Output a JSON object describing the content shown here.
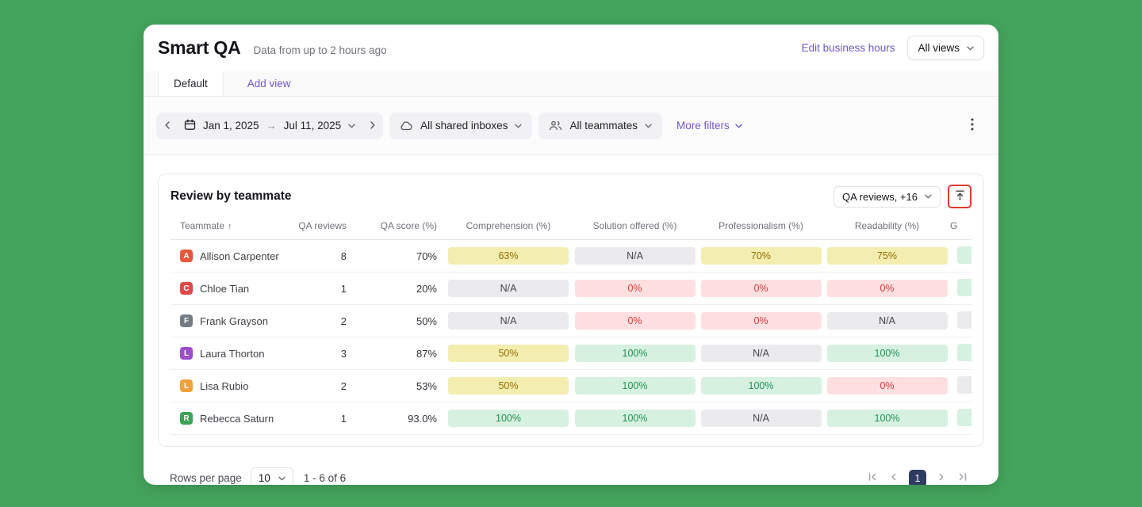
{
  "header": {
    "title": "Smart QA",
    "subtitle": "Data from up to 2 hours ago",
    "edit_business_hours": "Edit business hours",
    "views_label": "All views"
  },
  "tabs": {
    "default": "Default",
    "add_view": "Add view"
  },
  "filters": {
    "date_start": "Jan 1, 2025",
    "date_separator": "→",
    "date_end": "Jul 11, 2025",
    "inboxes_label": "All shared inboxes",
    "teammates_label": "All teammates",
    "more_filters_label": "More filters"
  },
  "report": {
    "title": "Review by teammate",
    "metric_dropdown_label": "QA reviews, +16"
  },
  "table": {
    "columns": [
      {
        "label": "Teammate",
        "align": "left",
        "sorted": true
      },
      {
        "label": "QA reviews",
        "align": "right"
      },
      {
        "label": "QA score (%)",
        "align": "right"
      },
      {
        "label": "Comprehension (%)",
        "align": "center"
      },
      {
        "label": "Solution offered (%)",
        "align": "center"
      },
      {
        "label": "Professionalism (%)",
        "align": "center"
      },
      {
        "label": "Readability (%)",
        "align": "center"
      },
      {
        "label": "G",
        "align": "left"
      }
    ],
    "rows": [
      {
        "initial": "A",
        "avatar_color": "#e8563c",
        "name": "Allison Carpenter",
        "qa_reviews": "8",
        "qa_score": "70%",
        "metrics": [
          {
            "value": "63%",
            "tone": "yellow"
          },
          {
            "value": "N/A",
            "tone": "gray"
          },
          {
            "value": "70%",
            "tone": "yellow"
          },
          {
            "value": "75%",
            "tone": "yellow"
          }
        ],
        "last_tone": "green"
      },
      {
        "initial": "C",
        "avatar_color": "#dd4a4a",
        "name": "Chloe Tian",
        "qa_reviews": "1",
        "qa_score": "20%",
        "metrics": [
          {
            "value": "N/A",
            "tone": "gray"
          },
          {
            "value": "0%",
            "tone": "red"
          },
          {
            "value": "0%",
            "tone": "red"
          },
          {
            "value": "0%",
            "tone": "red"
          }
        ],
        "last_tone": "green"
      },
      {
        "initial": "F",
        "avatar_color": "#747b82",
        "name": "Frank Grayson",
        "qa_reviews": "2",
        "qa_score": "50%",
        "metrics": [
          {
            "value": "N/A",
            "tone": "gray"
          },
          {
            "value": "0%",
            "tone": "red"
          },
          {
            "value": "0%",
            "tone": "red"
          },
          {
            "value": "N/A",
            "tone": "gray"
          }
        ],
        "last_tone": "gray"
      },
      {
        "initial": "L",
        "avatar_color": "#9b4dca",
        "name": "Laura Thorton",
        "qa_reviews": "3",
        "qa_score": "87%",
        "metrics": [
          {
            "value": "50%",
            "tone": "yellow"
          },
          {
            "value": "100%",
            "tone": "green"
          },
          {
            "value": "N/A",
            "tone": "gray"
          },
          {
            "value": "100%",
            "tone": "green"
          }
        ],
        "last_tone": "green"
      },
      {
        "initial": "L",
        "avatar_color": "#efa13b",
        "name": "Lisa Rubio",
        "qa_reviews": "2",
        "qa_score": "53%",
        "metrics": [
          {
            "value": "50%",
            "tone": "yellow"
          },
          {
            "value": "100%",
            "tone": "green"
          },
          {
            "value": "100%",
            "tone": "green"
          },
          {
            "value": "0%",
            "tone": "red"
          }
        ],
        "last_tone": "gray"
      },
      {
        "initial": "R",
        "avatar_color": "#3aa357",
        "name": "Rebecca Saturn",
        "qa_reviews": "1",
        "qa_score": "93.0%",
        "metrics": [
          {
            "value": "100%",
            "tone": "green"
          },
          {
            "value": "100%",
            "tone": "green"
          },
          {
            "value": "N/A",
            "tone": "gray"
          },
          {
            "value": "100%",
            "tone": "green"
          }
        ],
        "last_tone": "green"
      }
    ]
  },
  "footer": {
    "rows_per_page_label": "Rows per page",
    "rows_per_page_value": "10",
    "range_label": "1 - 6 of 6",
    "current_page": "1"
  },
  "colors": {
    "background": "#44a45c",
    "accent_link": "#7256c8",
    "highlight_box": "#e23b2e",
    "active_page_bg": "#2e3c61",
    "pill_yellow_bg": "#f3eeb0",
    "pill_yellow_text": "#946c00",
    "pill_gray_bg": "#ebebee",
    "pill_gray_text": "#45454d",
    "pill_red_bg": "#ffdfdf",
    "pill_red_text": "#d93b3b",
    "pill_green_bg": "#d7f1e1",
    "pill_green_text": "#1f9254"
  }
}
